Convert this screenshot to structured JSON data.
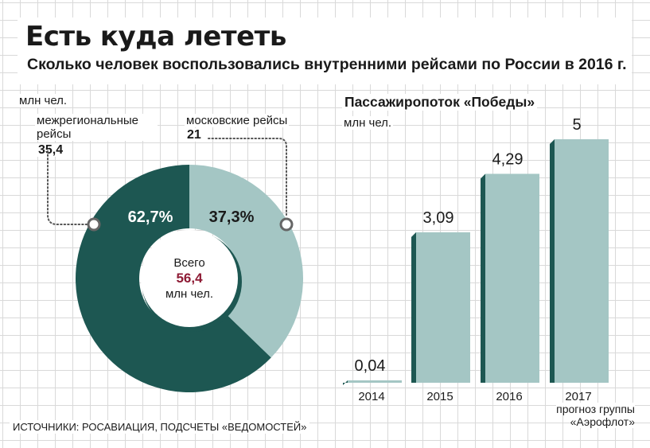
{
  "header": {
    "title": "Есть куда лететь",
    "subtitle": "Сколько человек воспользовались внутренними рейсами по России в 2016 г."
  },
  "source": "ИСТОЧНИКИ: РОСАВИАЦИЯ, ПОДСЧЕТЫ «ВЕДОМОСТЕЙ»",
  "colors": {
    "dark": "#1d5752",
    "light": "#a4c6c4",
    "accent": "#8e1b35"
  },
  "chart_data": [
    {
      "type": "pie",
      "variant": "donut",
      "unit": "млн чел.",
      "series": [
        {
          "name": "межрегиональные рейсы",
          "value": 35.4,
          "percent_label": "62,7%",
          "value_label": "35,4"
        },
        {
          "name": "московские рейсы",
          "value": 21,
          "percent_label": "37,3%",
          "value_label": "21"
        }
      ],
      "center": {
        "label": "Всего",
        "value": "56,4",
        "unit": "млн чел."
      }
    },
    {
      "type": "bar",
      "title": "Пассажиропоток «Победы»",
      "ylabel": "млн чел.",
      "categories": [
        "2014",
        "2015",
        "2016",
        "2017"
      ],
      "values": [
        0.04,
        3.09,
        4.29,
        5
      ],
      "value_labels": [
        "0,04",
        "3,09",
        "4,29",
        "5"
      ],
      "ylim": [
        0,
        5
      ],
      "note": "прогноз группы «Аэрофлот»"
    }
  ]
}
